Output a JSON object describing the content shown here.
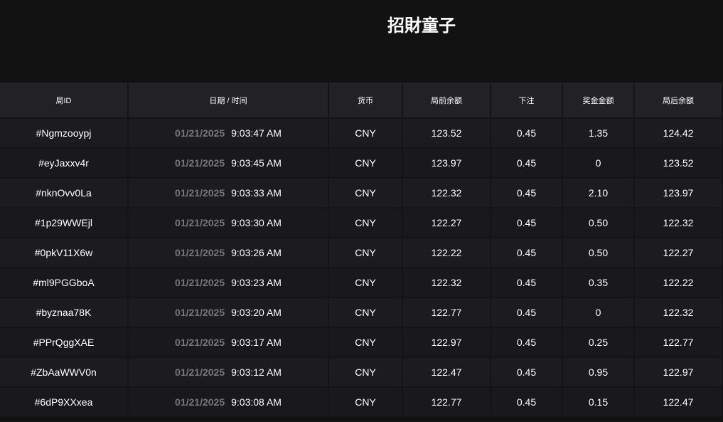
{
  "title": "招財童子",
  "columns": [
    "局ID",
    "日期 / 时间",
    "货币",
    "局前余额",
    "下注",
    "奖金金额",
    "局后余额"
  ],
  "rows": [
    {
      "id": "#Ngmzooypj",
      "date": "01/21/2025",
      "time": "9:03:47 AM",
      "currency": "CNY",
      "before": "123.52",
      "bet": "0.45",
      "win": "1.35",
      "after": "124.42"
    },
    {
      "id": "#eyJaxxv4r",
      "date": "01/21/2025",
      "time": "9:03:45 AM",
      "currency": "CNY",
      "before": "123.97",
      "bet": "0.45",
      "win": "0",
      "after": "123.52"
    },
    {
      "id": "#nknOvv0La",
      "date": "01/21/2025",
      "time": "9:03:33 AM",
      "currency": "CNY",
      "before": "122.32",
      "bet": "0.45",
      "win": "2.10",
      "after": "123.97"
    },
    {
      "id": "#1p29WWEjl",
      "date": "01/21/2025",
      "time": "9:03:30 AM",
      "currency": "CNY",
      "before": "122.27",
      "bet": "0.45",
      "win": "0.50",
      "after": "122.32"
    },
    {
      "id": "#0pkV11X6w",
      "date": "01/21/2025",
      "time": "9:03:26 AM",
      "currency": "CNY",
      "before": "122.22",
      "bet": "0.45",
      "win": "0.50",
      "after": "122.27"
    },
    {
      "id": "#ml9PGGboA",
      "date": "01/21/2025",
      "time": "9:03:23 AM",
      "currency": "CNY",
      "before": "122.32",
      "bet": "0.45",
      "win": "0.35",
      "after": "122.22"
    },
    {
      "id": "#byznaa78K",
      "date": "01/21/2025",
      "time": "9:03:20 AM",
      "currency": "CNY",
      "before": "122.77",
      "bet": "0.45",
      "win": "0",
      "after": "122.32"
    },
    {
      "id": "#PPrQggXAE",
      "date": "01/21/2025",
      "time": "9:03:17 AM",
      "currency": "CNY",
      "before": "122.97",
      "bet": "0.45",
      "win": "0.25",
      "after": "122.77"
    },
    {
      "id": "#ZbAaWWV0n",
      "date": "01/21/2025",
      "time": "9:03:12 AM",
      "currency": "CNY",
      "before": "122.47",
      "bet": "0.45",
      "win": "0.95",
      "after": "122.97"
    },
    {
      "id": "#6dP9XXxea",
      "date": "01/21/2025",
      "time": "9:03:08 AM",
      "currency": "CNY",
      "before": "122.77",
      "bet": "0.45",
      "win": "0.15",
      "after": "122.47"
    }
  ]
}
